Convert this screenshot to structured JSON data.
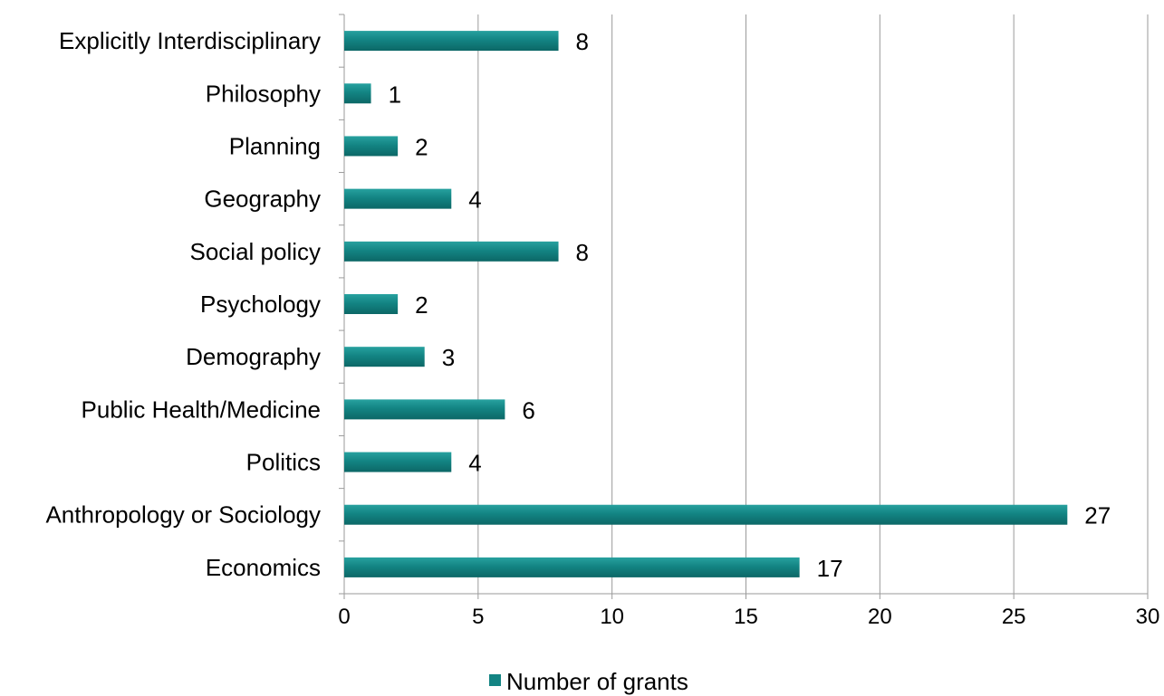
{
  "chart_data": {
    "type": "bar",
    "orientation": "horizontal",
    "categories": [
      "Economics",
      "Anthropology or Sociology",
      "Politics",
      "Public Health/Medicine",
      "Demography",
      "Psychology",
      "Social policy",
      "Geography",
      "Planning",
      "Philosophy",
      "Explicitly Interdisciplinary"
    ],
    "series": [
      {
        "name": "Number of grants",
        "values": [
          17,
          27,
          4,
          6,
          3,
          2,
          8,
          4,
          2,
          1,
          8
        ],
        "color": "#138483"
      }
    ],
    "xlim": [
      0,
      30
    ],
    "xticks": [
      0,
      5,
      10,
      15,
      20,
      25,
      30
    ],
    "title": "",
    "xlabel": "",
    "ylabel": "",
    "grid": "vertical",
    "legend_position": "bottom",
    "data_labels": true,
    "gridline_color": "#9a9a9a"
  }
}
